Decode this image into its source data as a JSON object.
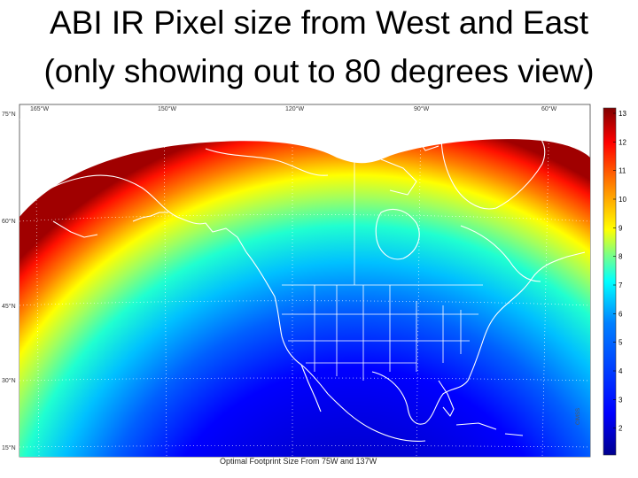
{
  "title": {
    "line1": "ABI IR Pixel size from West and East",
    "line2": "(only showing out to 80 degrees view)"
  },
  "map": {
    "lat_labels": [
      "75°N",
      "60°N",
      "45°N",
      "30°N",
      "15°N"
    ],
    "lon_labels": [
      "165°W",
      "150°W",
      "120°W",
      "90°W",
      "60°W"
    ],
    "caption": "Optimal Footprint Size From 75W and 137W",
    "credit": "CIMSS",
    "color_scale": [
      "#00008f",
      "#0000ff",
      "#0080ff",
      "#00ffff",
      "#80ff80",
      "#ffff00",
      "#ff8000",
      "#ff0000",
      "#800000"
    ]
  },
  "colorbar": {
    "labels": [
      "13",
      "12",
      "11",
      "10",
      "9",
      "8",
      "7",
      "6",
      "5",
      "4",
      "3",
      "2"
    ]
  }
}
